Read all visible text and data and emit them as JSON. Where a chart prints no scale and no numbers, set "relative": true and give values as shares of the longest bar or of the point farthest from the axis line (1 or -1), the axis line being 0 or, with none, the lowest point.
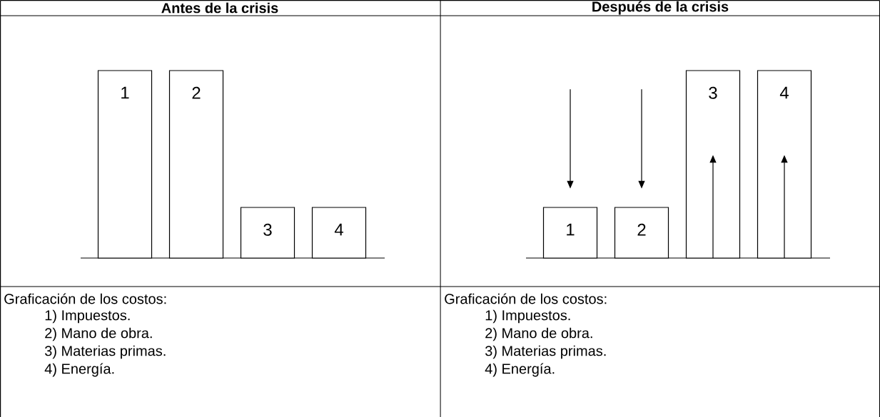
{
  "chart_data": [
    {
      "type": "bar",
      "title": "Antes de la crisis",
      "categories": [
        "1",
        "2",
        "3",
        "4"
      ],
      "values": [
        1,
        1,
        0.27,
        0.27
      ],
      "relative": true,
      "color": "#ffffff",
      "annotations": [
        "Graficación de los costos:",
        "1) Impuestos.",
        "2) Mano de obra.",
        "3) Materias primas.",
        "4) Energía."
      ]
    },
    {
      "type": "bar",
      "title": "Después de la crisis",
      "categories": [
        "1",
        "2",
        "3",
        "4"
      ],
      "values": [
        0.27,
        0.27,
        1,
        1
      ],
      "relative": true,
      "color": "#ffffff",
      "annotations": [
        "Graficación de los costos:",
        "1) Impuestos.",
        "2) Mano de obra.",
        "3) Materias primas.",
        "4) Energía."
      ]
    }
  ]
}
